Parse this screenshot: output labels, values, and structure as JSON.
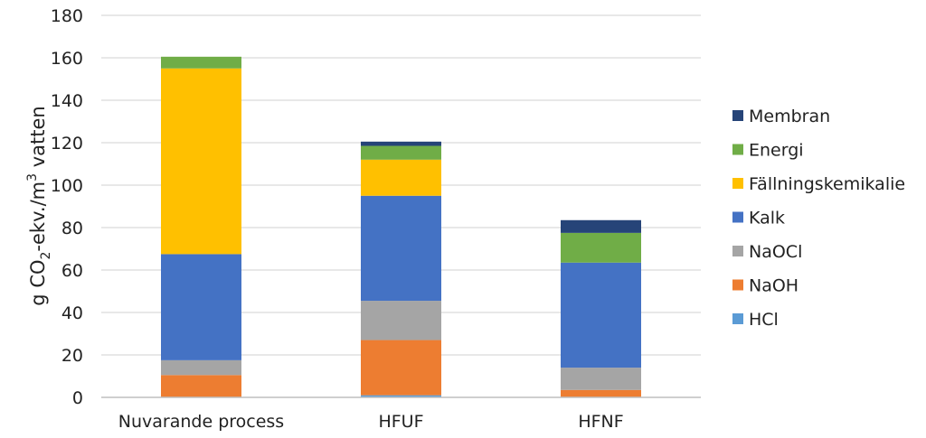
{
  "chart_data": {
    "type": "bar",
    "stacked": true,
    "categories": [
      "Nuvarande process",
      "HFUF",
      "HFNF"
    ],
    "series": [
      {
        "name": "HCl",
        "color": "#5b9bd5",
        "values": [
          0,
          1,
          0
        ]
      },
      {
        "name": "NaOH",
        "color": "#ed7d31",
        "values": [
          10.5,
          26,
          3.5
        ]
      },
      {
        "name": "NaOCl",
        "color": "#a5a5a5",
        "values": [
          7,
          18.5,
          10.5
        ]
      },
      {
        "name": "Kalk",
        "color": "#4472c4",
        "values": [
          50,
          49.5,
          49.5
        ]
      },
      {
        "name": "Fällningskemikalie",
        "color": "#ffc000",
        "values": [
          87.5,
          17,
          0
        ]
      },
      {
        "name": "Energi",
        "color": "#70ad47",
        "values": [
          5.5,
          6.5,
          14
        ]
      },
      {
        "name": "Membran",
        "color": "#264478",
        "values": [
          0,
          2,
          6
        ]
      }
    ],
    "legend_order": [
      "Membran",
      "Energi",
      "Fällningskemikalie",
      "Kalk",
      "NaOCl",
      "NaOH",
      "HCl"
    ],
    "ylabel_main": "g CO",
    "ylabel_sub": "2",
    "ylabel_mid": "-ekv./m",
    "ylabel_sup": "3",
    "ylabel_end": " vatten",
    "yticks": [
      "0",
      "20",
      "40",
      "60",
      "80",
      "100",
      "120",
      "140",
      "160",
      "180"
    ],
    "ylim": [
      0,
      180
    ],
    "grid": true,
    "legend_position": "right"
  }
}
